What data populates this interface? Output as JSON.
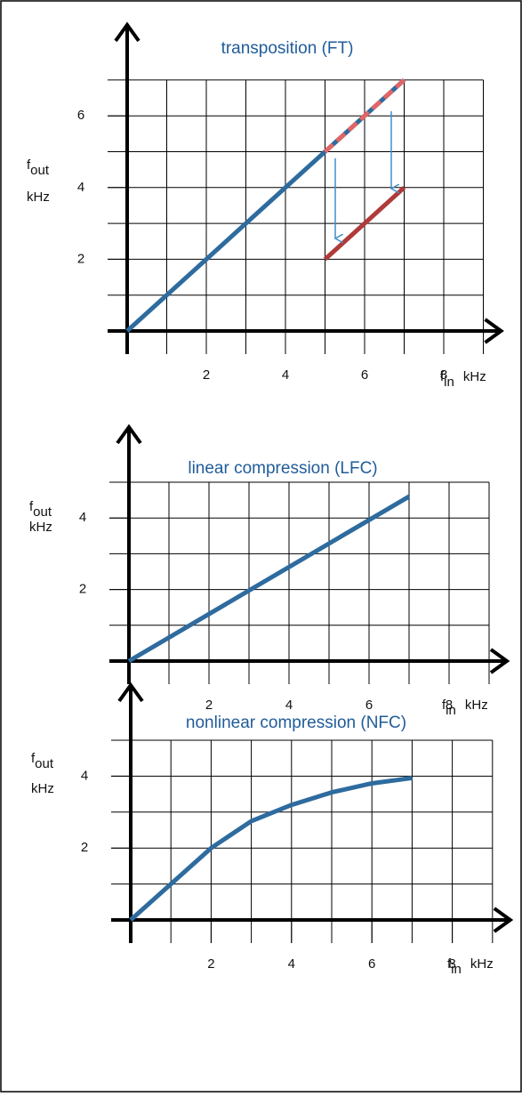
{
  "chart_data": [
    {
      "type": "line",
      "title": "transposition (FT)",
      "x_label": {
        "symbol": "f",
        "subscript": "in",
        "unit": "kHz"
      },
      "y_label": {
        "symbol": "f",
        "subscript": "out",
        "unit": "kHz"
      },
      "xlim": [
        0,
        9
      ],
      "ylim": [
        0,
        7
      ],
      "xticks": [
        2,
        4,
        6,
        8
      ],
      "yticks": [
        2,
        4,
        6
      ],
      "grid": true,
      "grid_step": 1,
      "series": [
        {
          "color": "#2e6b9e",
          "x": [
            0,
            7
          ],
          "values": [
            0,
            7
          ]
        },
        {
          "color": "#e06666",
          "dashed": true,
          "x": [
            5,
            7
          ],
          "values": [
            5,
            7
          ]
        },
        {
          "color": "#b03a3a",
          "x": [
            5,
            7
          ],
          "values": [
            2,
            4
          ]
        }
      ]
    },
    {
      "type": "line",
      "title": "linear compression (LFC)",
      "x_label": {
        "symbol": "f",
        "subscript": "in",
        "unit": "kHz"
      },
      "y_label": {
        "symbol": "f",
        "subscript": "out",
        "unit": "kHz"
      },
      "xlim": [
        0,
        9
      ],
      "ylim": [
        0,
        5
      ],
      "xticks": [
        2,
        4,
        6,
        8
      ],
      "yticks": [
        2,
        4
      ],
      "grid": true,
      "grid_step": 1,
      "series": [
        {
          "color": "#2e6b9e",
          "x": [
            0,
            7
          ],
          "values": [
            0,
            4.6
          ]
        }
      ]
    },
    {
      "type": "line",
      "title": "nonlinear compression (NFC)",
      "x_label": {
        "symbol": "f",
        "subscript": "in",
        "unit": "kHz"
      },
      "y_label": {
        "symbol": "f",
        "subscript": "out",
        "unit": "kHz"
      },
      "xlim": [
        0,
        9
      ],
      "ylim": [
        0,
        5
      ],
      "xticks": [
        2,
        4,
        6,
        8
      ],
      "yticks": [
        2,
        4
      ],
      "grid": true,
      "grid_step": 1,
      "series": [
        {
          "color": "#2e6b9e",
          "x": [
            0,
            1,
            2,
            3,
            4,
            5,
            6,
            7
          ],
          "values": [
            0,
            1,
            2,
            2.75,
            3.2,
            3.55,
            3.8,
            3.95
          ]
        }
      ]
    }
  ]
}
